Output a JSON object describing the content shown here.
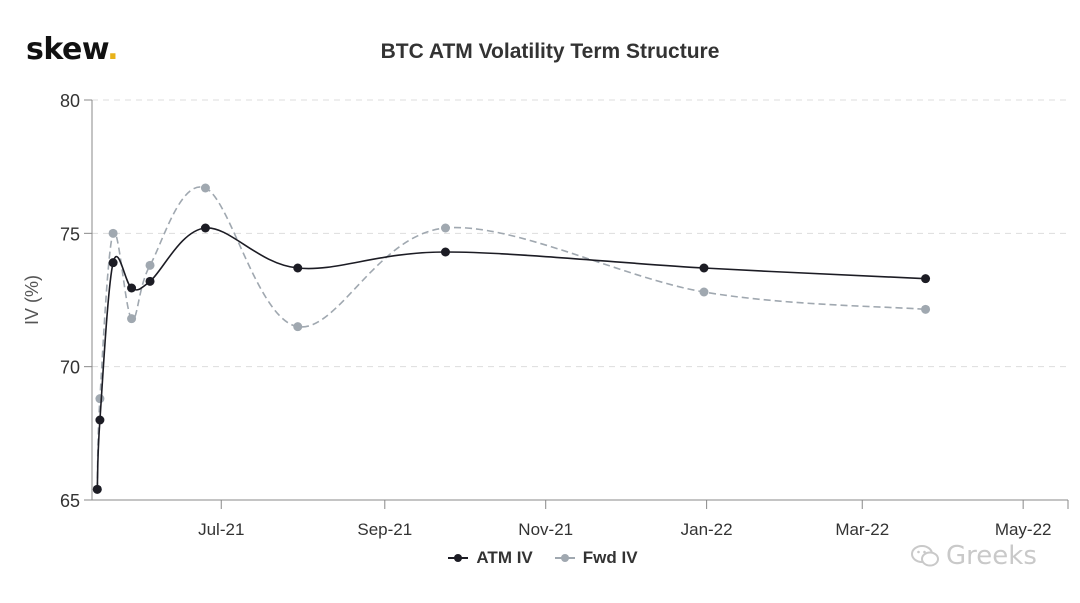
{
  "brand": {
    "name": "skew",
    "dot": "."
  },
  "watermark": {
    "text": "Greeks",
    "icon": "wechat-icon"
  },
  "colors": {
    "atm": "#1c1c24",
    "fwd": "#a0a8b0",
    "grid": "#dddddd",
    "axis": "#888888",
    "brand_dot": "#e8b21a"
  },
  "chart_data": {
    "type": "line",
    "title": "BTC ATM Volatility Term Structure",
    "xlabel": "",
    "ylabel": "IV (%)",
    "ylim": [
      65,
      80
    ],
    "yticks": [
      65,
      70,
      75,
      80
    ],
    "xlim": [
      "2021-05-13",
      "2022-05-18"
    ],
    "xticks": [
      {
        "date": "2021-07-01",
        "label": "Jul-21"
      },
      {
        "date": "2021-09-01",
        "label": "Sep-21"
      },
      {
        "date": "2021-11-01",
        "label": "Nov-21"
      },
      {
        "date": "2022-01-01",
        "label": "Jan-22"
      },
      {
        "date": "2022-03-01",
        "label": "Mar-22"
      },
      {
        "date": "2022-05-01",
        "label": "May-22"
      }
    ],
    "grid": "horizontal",
    "legend": "bottom-center",
    "series": [
      {
        "name": "ATM IV",
        "style": "solid",
        "x": [
          "2021-05-15",
          "2021-05-16",
          "2021-05-21",
          "2021-05-28",
          "2021-06-04",
          "2021-06-25",
          "2021-07-30",
          "2021-09-24",
          "2021-12-31",
          "2022-03-25"
        ],
        "y": [
          65.4,
          68.0,
          73.9,
          72.95,
          73.2,
          75.2,
          73.7,
          74.3,
          73.7,
          73.3
        ]
      },
      {
        "name": "Fwd IV",
        "style": "dashed",
        "x": [
          "2021-05-15",
          "2021-05-16",
          "2021-05-21",
          "2021-05-28",
          "2021-06-04",
          "2021-06-25",
          "2021-07-30",
          "2021-09-24",
          "2021-12-31",
          "2022-03-25"
        ],
        "y": [
          65.4,
          68.8,
          75.0,
          71.8,
          73.8,
          76.7,
          71.5,
          75.2,
          72.8,
          72.15
        ]
      }
    ]
  }
}
